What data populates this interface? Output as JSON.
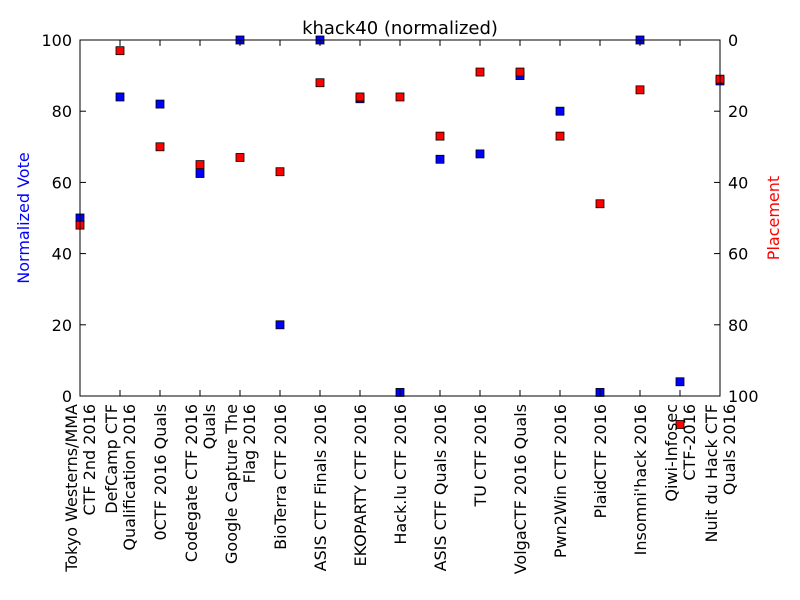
{
  "chart_data": {
    "type": "scatter",
    "title": "khack40 (normalized)",
    "ylabel_left": "Normalized Vote",
    "ylabel_right": "Placement",
    "left_axis": {
      "range": [
        0,
        100
      ],
      "ticks": [
        "0",
        "20",
        "40",
        "60",
        "80",
        "100"
      ],
      "color": "#0000ff"
    },
    "right_axis": {
      "range": [
        100,
        0
      ],
      "inverted": true,
      "ticks": [
        "0",
        "20",
        "40",
        "60",
        "80",
        "100"
      ],
      "color": "#ff0000"
    },
    "grid": false,
    "categories": [
      [
        "Tokyo Westerns/MMA",
        "CTF 2nd 2016"
      ],
      [
        "DefCamp CTF",
        "Qualification 2016"
      ],
      [
        "0CTF 2016 Quals"
      ],
      [
        "Codegate CTF 2016",
        "Quals"
      ],
      [
        "Google Capture The",
        "Flag 2016"
      ],
      [
        "BioTerra CTF 2016"
      ],
      [
        "ASIS CTF Finals 2016"
      ],
      [
        "EKOPARTY CTF 2016"
      ],
      [
        "Hack.lu CTF 2016"
      ],
      [
        "ASIS CTF Quals 2016"
      ],
      [
        "TU CTF 2016"
      ],
      [
        "VolgaCTF 2016 Quals"
      ],
      [
        "Pwn2Win CTF 2016"
      ],
      [
        "PlaidCTF 2016"
      ],
      [
        "Insomni'hack 2016"
      ],
      [
        "Qiwi-Infosec",
        "CTF-2016"
      ],
      [
        "Nuit du Hack CTF",
        "Quals 2016"
      ]
    ],
    "series": [
      {
        "name": "Normalized Vote",
        "axis": "left",
        "color": "#0000ff",
        "marker": "square",
        "values": [
          50,
          84,
          82,
          62.5,
          100,
          20,
          100,
          83.5,
          1,
          66.5,
          68,
          90,
          80,
          1,
          100,
          4,
          88.5
        ]
      },
      {
        "name": "Placement",
        "axis": "right",
        "color": "#ff0000",
        "marker": "square",
        "values": [
          52,
          3,
          30,
          35,
          33,
          37,
          12,
          16,
          16,
          27,
          9,
          9,
          27,
          46,
          14,
          108,
          11
        ]
      }
    ]
  }
}
